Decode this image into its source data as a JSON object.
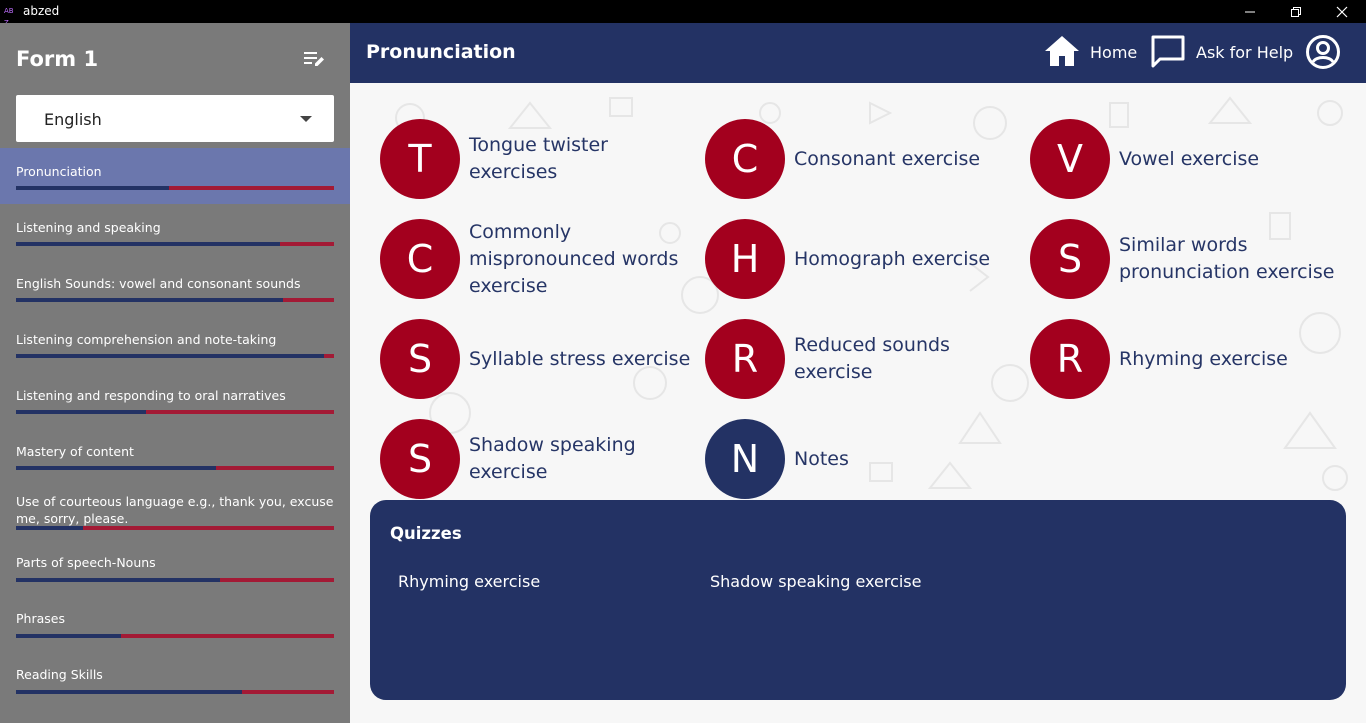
{
  "window": {
    "app_name": "abzed",
    "logo_text": "AB Z"
  },
  "sidebar": {
    "form_title": "Form 1",
    "language": "English",
    "topics": [
      {
        "label": "Pronunciation",
        "progress": 0.48
      },
      {
        "label": "Listening and speaking",
        "progress": 0.83
      },
      {
        "label": "English Sounds: vowel and consonant sounds",
        "progress": 0.84
      },
      {
        "label": "Listening comprehension and note-taking",
        "progress": 0.97
      },
      {
        "label": "Listening and responding to oral narratives",
        "progress": 0.41
      },
      {
        "label": "Mastery of content",
        "progress": 0.63
      },
      {
        "label": "Use of courteous language e.g., thank you, excuse me, sorry, please.",
        "progress": 0.21
      },
      {
        "label": "Parts of speech-Nouns",
        "progress": 0.64
      },
      {
        "label": "Phrases",
        "progress": 0.33
      },
      {
        "label": "Reading Skills",
        "progress": 0.71
      }
    ]
  },
  "header": {
    "title": "Pronunciation",
    "home_label": "Home",
    "help_label": "Ask for Help"
  },
  "exercises": [
    {
      "letter": "T",
      "label": "Tongue twister exercises",
      "color": "#a3001e"
    },
    {
      "letter": "C",
      "label": "Consonant exercise",
      "color": "#a3001e"
    },
    {
      "letter": "V",
      "label": "Vowel exercise",
      "color": "#a3001e"
    },
    {
      "letter": "C",
      "label": "Commonly mispronounced words exercise",
      "color": "#a3001e"
    },
    {
      "letter": "H",
      "label": "Homograph exercise",
      "color": "#a3001e"
    },
    {
      "letter": "S",
      "label": "Similar words pronunciation exercise",
      "color": "#a3001e"
    },
    {
      "letter": "S",
      "label": "Syllable stress exercise",
      "color": "#a3001e"
    },
    {
      "letter": "R",
      "label": "Reduced sounds exercise",
      "color": "#a3001e"
    },
    {
      "letter": "R",
      "label": "Rhyming exercise",
      "color": "#a3001e"
    },
    {
      "letter": "S",
      "label": "Shadow speaking exercise",
      "color": "#a3001e"
    },
    {
      "letter": "N",
      "label": "Notes",
      "color": "#233264"
    }
  ],
  "quizzes": {
    "title": "Quizzes",
    "items": [
      "Rhyming exercise",
      "Shadow speaking exercise"
    ]
  },
  "colors": {
    "navy": "#233264",
    "crimson": "#a3001e",
    "active_topic": "#6b77ad",
    "sidebar_bg": "#7a7a7a"
  }
}
